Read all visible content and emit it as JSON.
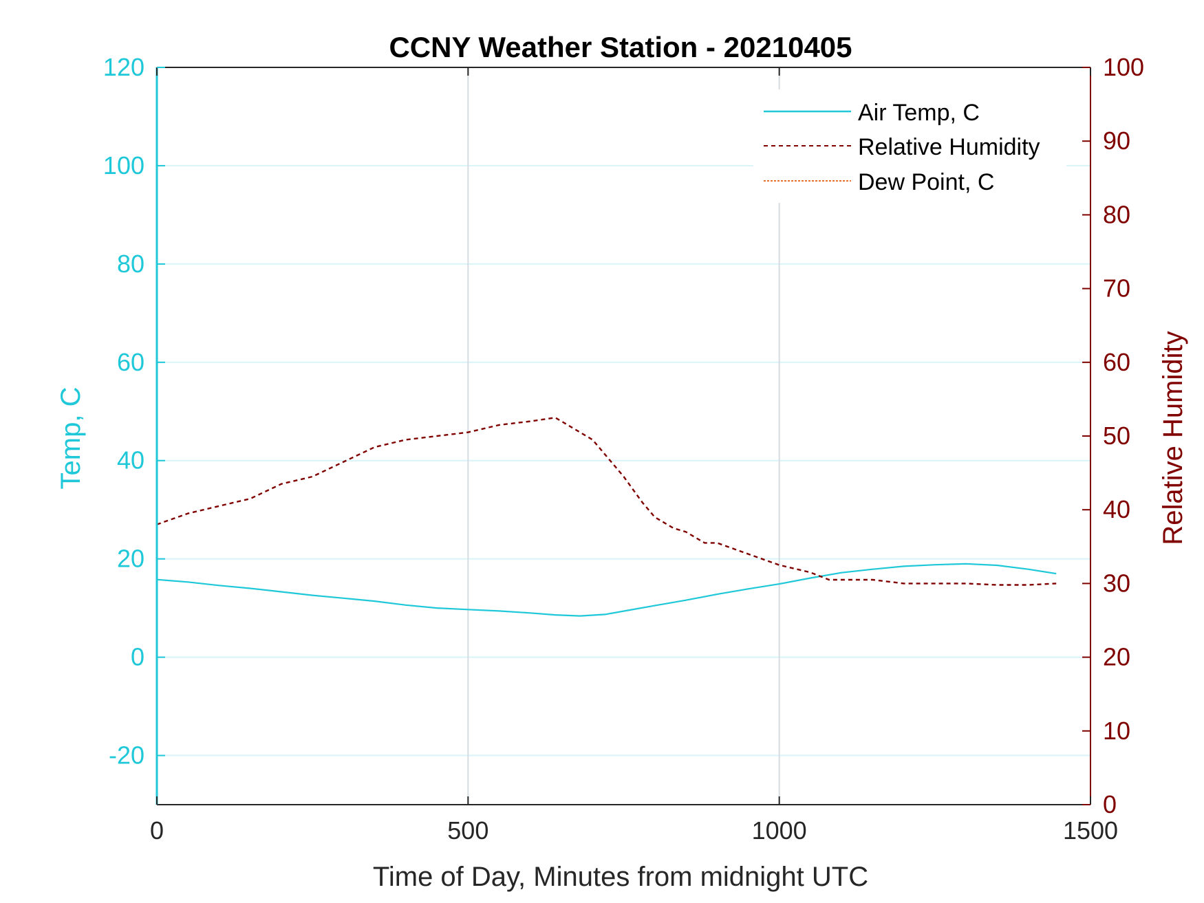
{
  "chart_data": {
    "type": "line",
    "title": "CCNY Weather Station - 20210405",
    "xlabel": "Time of Day, Minutes from midnight UTC",
    "ylabel_left": "Temp, C",
    "ylabel_right": "Relative Humidity",
    "xlim": [
      0,
      1500
    ],
    "ylim_left": [
      -30,
      120
    ],
    "ylim_right": [
      0,
      100
    ],
    "xticks": [
      0,
      500,
      1000,
      1500
    ],
    "yticks_left": [
      -20,
      0,
      20,
      40,
      60,
      80,
      100,
      120
    ],
    "yticks_right": [
      0,
      10,
      20,
      30,
      40,
      50,
      60,
      70,
      80,
      90,
      100
    ],
    "legend_location": "top-right",
    "colors": {
      "left_axis": "#1ec8d8",
      "right_axis": "#800000",
      "dew": "#e8702a",
      "grid_x": "#d5dce2",
      "grid_y": "#d8f4f8"
    },
    "series": [
      {
        "name": "Air Temp, C",
        "axis": "left",
        "style": "solid",
        "color": "#1ec8d8",
        "x": [
          0,
          50,
          100,
          150,
          200,
          250,
          300,
          350,
          400,
          450,
          500,
          550,
          600,
          640,
          680,
          720,
          760,
          800,
          850,
          900,
          950,
          1000,
          1050,
          1100,
          1150,
          1200,
          1250,
          1300,
          1350,
          1400,
          1445
        ],
        "y": [
          15.8,
          15.3,
          14.6,
          14.0,
          13.3,
          12.6,
          12.0,
          11.4,
          10.6,
          10.0,
          9.7,
          9.4,
          9.0,
          8.6,
          8.4,
          8.7,
          9.6,
          10.5,
          11.6,
          12.8,
          13.9,
          14.9,
          16.1,
          17.2,
          17.9,
          18.5,
          18.8,
          19.0,
          18.7,
          17.9,
          17.0
        ]
      },
      {
        "name": "Relative Humidity",
        "axis": "right",
        "style": "dashed",
        "color": "#800000",
        "x": [
          0,
          50,
          100,
          150,
          200,
          250,
          300,
          350,
          400,
          450,
          500,
          550,
          600,
          640,
          660,
          700,
          750,
          780,
          800,
          830,
          850,
          880,
          900,
          950,
          1000,
          1050,
          1080,
          1100,
          1150,
          1200,
          1250,
          1300,
          1350,
          1400,
          1445
        ],
        "y": [
          38.0,
          39.5,
          40.5,
          41.5,
          43.5,
          44.5,
          46.5,
          48.5,
          49.5,
          50.0,
          50.5,
          51.5,
          52.0,
          52.5,
          51.5,
          49.5,
          44.5,
          41.0,
          39.0,
          37.5,
          37.0,
          35.5,
          35.5,
          34.0,
          32.5,
          31.5,
          30.5,
          30.5,
          30.5,
          30.0,
          30.0,
          30.0,
          29.8,
          29.8,
          30.0
        ]
      },
      {
        "name": "Dew Point, C",
        "axis": "left",
        "style": "dashdot",
        "color": "#e8702a",
        "x": [],
        "y": []
      }
    ]
  }
}
